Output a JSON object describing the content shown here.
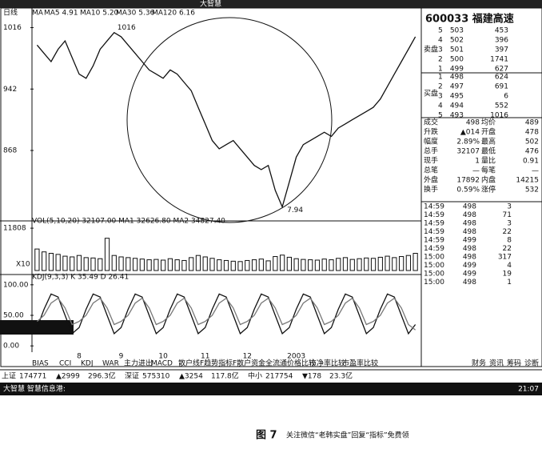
{
  "window_title": "大智慧",
  "chart_label": "日线",
  "ma_legend": [
    "MA",
    "MA5 4.91",
    "MA10 5.20",
    "MA30 5.36",
    "MA120 6.16"
  ],
  "x_axis": {
    "categories": [
      null,
      null,
      null,
      null,
      null,
      null,
      "8",
      null,
      null,
      null,
      null,
      null,
      "9",
      null,
      null,
      null,
      null,
      null,
      "10",
      null,
      null,
      null,
      null,
      null,
      "11",
      null,
      null,
      null,
      null,
      null,
      "12",
      null,
      null,
      null,
      null,
      null,
      null,
      "2003",
      null,
      null,
      null,
      null,
      null,
      null,
      null,
      null,
      null,
      null,
      null,
      null,
      null,
      null,
      null,
      null,
      null
    ]
  },
  "chart_data": [
    {
      "type": "line",
      "name": "price",
      "color": "#111",
      "annotations": [
        "1016",
        "7.94"
      ],
      "values": [
        995,
        985,
        975,
        990,
        1000,
        980,
        960,
        955,
        970,
        990,
        1000,
        1010,
        1005,
        995,
        985,
        975,
        965,
        960,
        955,
        965,
        960,
        950,
        940,
        920,
        900,
        880,
        870,
        875,
        880,
        870,
        860,
        850,
        845,
        850,
        820,
        800,
        830,
        860,
        875,
        880,
        885,
        890,
        885,
        895,
        900,
        905,
        910,
        915,
        920,
        930,
        945,
        960,
        975,
        990,
        1005
      ],
      "ylim": [
        787,
        1030
      ],
      "yticks": [
        1016,
        942,
        868
      ]
    },
    {
      "type": "bar",
      "name": "volume",
      "color": "#111",
      "title": "VOL(5,10,20) 32107.00 MA1 32626.80 MA2 34827.40",
      "unit_label": "X10",
      "values": [
        6000,
        5200,
        4800,
        4500,
        4000,
        3800,
        4200,
        3600,
        3500,
        3300,
        9000,
        4200,
        3800,
        3600,
        3400,
        3200,
        3000,
        3100,
        2900,
        3300,
        3000,
        2800,
        3600,
        4200,
        3800,
        3400,
        3000,
        2800,
        2600,
        2500,
        2800,
        3000,
        3200,
        2700,
        3900,
        4300,
        3700,
        3300,
        3100,
        3000,
        2900,
        3200,
        3000,
        3400,
        3600,
        3100,
        3300,
        3500,
        3400,
        3700,
        4000,
        3600,
        3900,
        4200,
        4800
      ],
      "ylim": [
        0,
        12500
      ],
      "yticks": [
        11808
      ]
    },
    {
      "type": "line",
      "name": "kdj",
      "title": "KDJ(9,3,3) K 35.49 D 26.41",
      "series": [
        {
          "name": "K",
          "color": "#111",
          "values": [
            30,
            60,
            85,
            80,
            50,
            20,
            30,
            60,
            85,
            80,
            50,
            20,
            30,
            60,
            85,
            80,
            50,
            20,
            30,
            60,
            85,
            80,
            50,
            20,
            30,
            60,
            85,
            80,
            50,
            20,
            30,
            60,
            85,
            80,
            50,
            20,
            30,
            60,
            85,
            80,
            50,
            20,
            30,
            60,
            85,
            80,
            50,
            20,
            30,
            60,
            85,
            80,
            50,
            20,
            35
          ]
        },
        {
          "name": "D",
          "color": "#777",
          "values": [
            40,
            50,
            70,
            78,
            62,
            35,
            40,
            50,
            70,
            78,
            62,
            35,
            40,
            50,
            70,
            78,
            62,
            35,
            40,
            50,
            70,
            78,
            62,
            35,
            40,
            50,
            70,
            78,
            62,
            35,
            40,
            50,
            70,
            78,
            62,
            35,
            40,
            50,
            70,
            78,
            62,
            35,
            40,
            50,
            70,
            78,
            62,
            35,
            40,
            50,
            70,
            78,
            62,
            35,
            26
          ]
        }
      ],
      "ylim": [
        -5,
        105
      ],
      "yticks": [
        {
          "value": 100,
          "label": "100.00"
        },
        {
          "value": 50,
          "label": "50.00"
        },
        {
          "value": 0,
          "label": "0.00"
        }
      ]
    }
  ],
  "tabs": [
    "BIAS",
    "CCI",
    "KDJ",
    "WAR",
    "主力进出",
    "MACD",
    "散户线",
    "F趋势指标",
    "F散户资金",
    "全流通价格比较",
    "市净率比较",
    "市盈率比较"
  ],
  "tabs_right": [
    "财务",
    "资讯",
    "筹码",
    "诊断"
  ],
  "quote": {
    "title": "600033 福建高速",
    "sell_label": "卖盘",
    "buy_label": "买盘",
    "sell": [
      [
        "5",
        "503",
        "453"
      ],
      [
        "4",
        "502",
        "396"
      ],
      [
        "3",
        "501",
        "397"
      ],
      [
        "2",
        "500",
        "1741"
      ],
      [
        "1",
        "499",
        "627"
      ]
    ],
    "buy": [
      [
        "1",
        "498",
        "624"
      ],
      [
        "2",
        "497",
        "691"
      ],
      [
        "3",
        "495",
        "6"
      ],
      [
        "4",
        "494",
        "552"
      ],
      [
        "5",
        "493",
        "1016"
      ]
    ],
    "stats": [
      [
        "成交",
        "498",
        "均价",
        "489"
      ],
      [
        "升跌",
        "▲014",
        "开盘",
        "478"
      ],
      [
        "幅度",
        "2.89%",
        "最高",
        "502"
      ],
      [
        "总手",
        "32107",
        "最低",
        "476"
      ],
      [
        "现手",
        "1",
        "量比",
        "0.91"
      ],
      [
        "总笔",
        "—",
        "每笔",
        "—"
      ],
      [
        "外盘",
        "17892",
        "内盘",
        "14215"
      ],
      [
        "换手",
        "0.59%",
        "涨停",
        "532"
      ]
    ]
  },
  "trades": [
    [
      "14:59",
      "498",
      "3"
    ],
    [
      "14:59",
      "498",
      "71"
    ],
    [
      "14:59",
      "498",
      "3"
    ],
    [
      "14:59",
      "498",
      "22"
    ],
    [
      "14:59",
      "499",
      "8"
    ],
    [
      "14:59",
      "498",
      "22"
    ],
    [
      "15:00",
      "498",
      "317"
    ],
    [
      "15:00",
      "499",
      "4"
    ],
    [
      "15:00",
      "499",
      "19"
    ],
    [
      "15:00",
      "498",
      "1"
    ]
  ],
  "status": [
    "上证",
    "174771",
    "▲2999",
    "296.3亿",
    "深证",
    "575310",
    "▲3254",
    "117.8亿",
    "中小",
    "217754",
    "▼178",
    "23.3亿"
  ],
  "ticker": "大智慧 智慧信息港:",
  "clock": "21:07",
  "caption": {
    "figure": "图 7",
    "note": "关注微信“老韩实盘”回复“指标”免费领"
  }
}
